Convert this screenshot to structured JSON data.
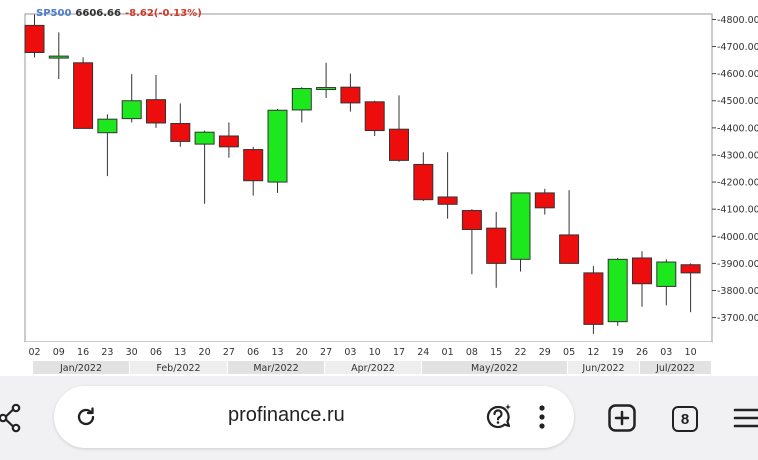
{
  "ticker": {
    "symbol": "SP500",
    "price": "6606.66",
    "change": "-8.62(-0.13%)"
  },
  "chart_data": {
    "type": "candlestick",
    "y_ticks": [
      "4800.00",
      "4700.00",
      "4600.00",
      "4500.00",
      "4400.00",
      "4300.00",
      "4200.00",
      "4100.00",
      "4000.00",
      "3900.00",
      "3800.00",
      "3700.00"
    ],
    "ylim": [
      3610,
      4820
    ],
    "x_labels": [
      "02",
      "09",
      "16",
      "23",
      "30",
      "06",
      "13",
      "20",
      "27",
      "06",
      "13",
      "20",
      "27",
      "03",
      "10",
      "17",
      "24",
      "01",
      "08",
      "15",
      "22",
      "29",
      "05",
      "12",
      "19",
      "26",
      "03",
      "10"
    ],
    "months": [
      "Jan/2022",
      "Feb/2022",
      "Mar/2022",
      "Apr/2022",
      "May/2022",
      "Jun/2022",
      "Jul/2022"
    ],
    "candles": [
      {
        "o": 4778,
        "h": 4818,
        "l": 4660,
        "c": 4678
      },
      {
        "o": 4660,
        "h": 4752,
        "l": 4580,
        "c": 4662
      },
      {
        "o": 4640,
        "h": 4660,
        "l": 4400,
        "c": 4398
      },
      {
        "o": 4382,
        "h": 4450,
        "l": 4222,
        "c": 4432
      },
      {
        "o": 4434,
        "h": 4598,
        "l": 4420,
        "c": 4500
      },
      {
        "o": 4504,
        "h": 4595,
        "l": 4400,
        "c": 4418
      },
      {
        "o": 4416,
        "h": 4490,
        "l": 4330,
        "c": 4350
      },
      {
        "o": 4340,
        "h": 4390,
        "l": 4120,
        "c": 4384
      },
      {
        "o": 4370,
        "h": 4420,
        "l": 4290,
        "c": 4330
      },
      {
        "o": 4320,
        "h": 4330,
        "l": 4150,
        "c": 4205
      },
      {
        "o": 4200,
        "h": 4470,
        "l": 4160,
        "c": 4465
      },
      {
        "o": 4466,
        "h": 4550,
        "l": 4420,
        "c": 4545
      },
      {
        "o": 4545,
        "h": 4640,
        "l": 4510,
        "c": 4545
      },
      {
        "o": 4550,
        "h": 4600,
        "l": 4460,
        "c": 4492
      },
      {
        "o": 4496,
        "h": 4500,
        "l": 4370,
        "c": 4390
      },
      {
        "o": 4395,
        "h": 4520,
        "l": 4275,
        "c": 4280
      },
      {
        "o": 4265,
        "h": 4310,
        "l": 4130,
        "c": 4135
      },
      {
        "o": 4145,
        "h": 4310,
        "l": 4065,
        "c": 4118
      },
      {
        "o": 4095,
        "h": 4100,
        "l": 3860,
        "c": 4025
      },
      {
        "o": 4030,
        "h": 4090,
        "l": 3810,
        "c": 3900
      },
      {
        "o": 3915,
        "h": 4160,
        "l": 3870,
        "c": 4160
      },
      {
        "o": 4160,
        "h": 4175,
        "l": 4080,
        "c": 4105
      },
      {
        "o": 4005,
        "h": 4170,
        "l": 3900,
        "c": 3900
      },
      {
        "o": 3865,
        "h": 3890,
        "l": 3640,
        "c": 3675
      },
      {
        "o": 3685,
        "h": 3920,
        "l": 3670,
        "c": 3915
      },
      {
        "o": 3920,
        "h": 3945,
        "l": 3740,
        "c": 3825
      },
      {
        "o": 3815,
        "h": 3915,
        "l": 3745,
        "c": 3905
      },
      {
        "o": 3895,
        "h": 3900,
        "l": 3720,
        "c": 3865
      }
    ]
  },
  "browser": {
    "url": "profinance.ru",
    "tab_count": "8"
  },
  "colors": {
    "up": "#1de71d",
    "down": "#ee0d0d",
    "axis": "#444444"
  }
}
